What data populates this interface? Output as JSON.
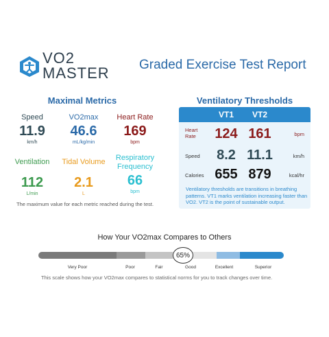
{
  "header": {
    "brand_line1": "VO2",
    "brand_line2": "MASTER",
    "report_title": "Graded Exercise Test Report"
  },
  "maximal_metrics": {
    "title": "Maximal Metrics",
    "items": [
      {
        "label": "Speed",
        "value": "11.9",
        "unit": "km/h",
        "color": "#2f4a55"
      },
      {
        "label": "VO2max",
        "value": "46.6",
        "unit": "mL/kg/min",
        "color": "#2b6aa8"
      },
      {
        "label": "Heart Rate",
        "value": "169",
        "unit": "bpm",
        "color": "#8b1a1a"
      },
      {
        "label": "Ventilation",
        "value": "112",
        "unit": "L/min",
        "color": "#3c9a4e"
      },
      {
        "label": "Tidal Volume",
        "value": "2.1",
        "unit": "L",
        "color": "#e89a1c"
      },
      {
        "label": "Respiratory Frequency",
        "value": "66",
        "unit": "bpm",
        "color": "#2bbfd0"
      }
    ],
    "note": "The maximum value for each metric reached during the test."
  },
  "ventilatory_thresholds": {
    "title": "Ventilatory Thresholds",
    "columns": [
      "VT1",
      "VT2"
    ],
    "rows": [
      {
        "label": "Heart Rate",
        "vt1": "124",
        "vt2": "161",
        "unit": "bpm",
        "color": "#8b1a1a"
      },
      {
        "label": "Speed",
        "vt1": "8.2",
        "vt2": "11.1",
        "unit": "km/h",
        "color": "#2f4a55"
      },
      {
        "label": "Calories",
        "vt1": "655",
        "vt2": "879",
        "unit": "kcal/hr",
        "color": "#111111"
      }
    ],
    "note": "Ventilatory thresholds are transitions in breathing patterns. VT1 marks ventilation increasing faster than VO2. VT2 is the point of sustainable output."
  },
  "comparison": {
    "title": "How Your VO2max Compares to Others",
    "percentile": "65%",
    "percentile_value": 65,
    "categories": [
      "Very Poor",
      "Poor",
      "Fair",
      "Good",
      "Excellent",
      "Superior"
    ],
    "colors": [
      "#7a7a7a",
      "#9a9a9a",
      "#c4c4c4",
      "#e4e4e4",
      "#8fbce3",
      "#2b89cc"
    ],
    "note": "This scale shows how your VO2max compares to statistical norms for you to track changes over time."
  }
}
